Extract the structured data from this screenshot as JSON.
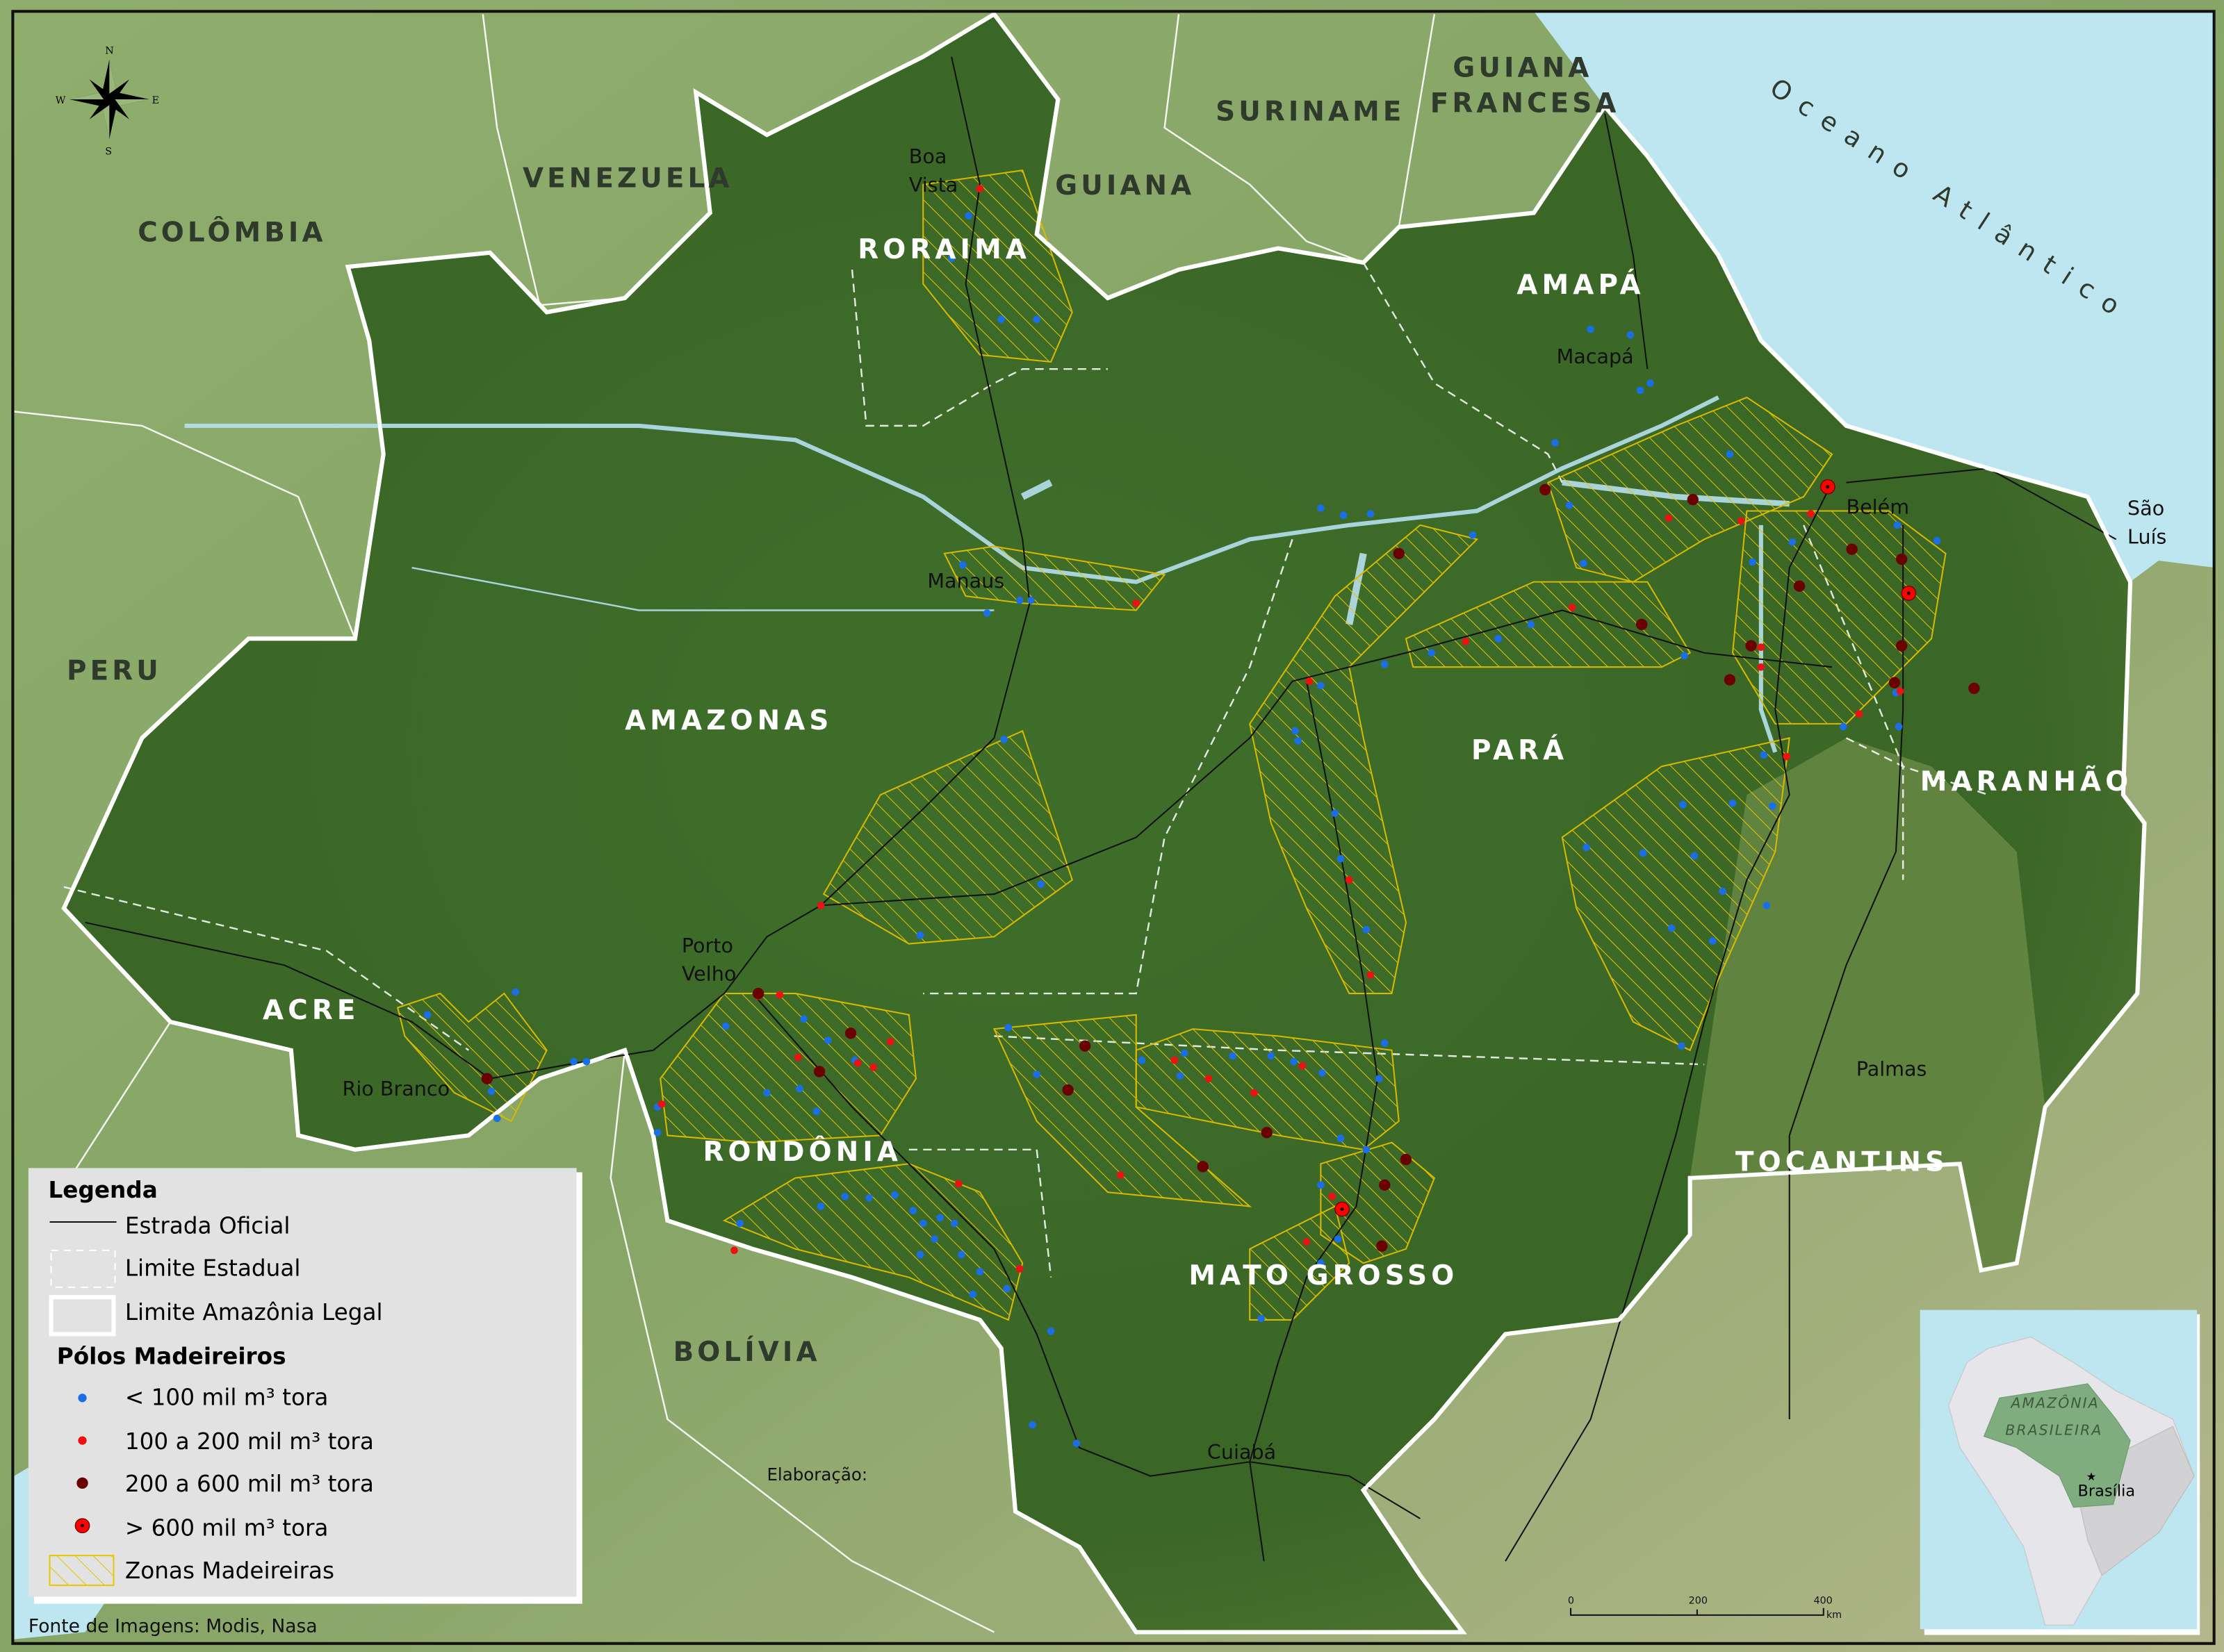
{
  "countries": {
    "colombia": "COLÔMBIA",
    "venezuela": "VENEZUELA",
    "guiana": "GUIANA",
    "suriname": "SURINAME",
    "guiana_francesa_1": "GUIANA",
    "guiana_francesa_2": "FRANCESA",
    "peru": "PERU",
    "bolivia": "BOLÍVIA",
    "ocean": "Oceano Atlântico"
  },
  "states": {
    "roraima": "RORAIMA",
    "amapa": "AMAPÁ",
    "amazonas": "AMAZONAS",
    "para": "PARÁ",
    "maranhao": "MARANHÃO",
    "acre": "ACRE",
    "rondonia": "RONDÔNIA",
    "mato_grosso": "MATO GROSSO",
    "tocantins": "TOCANTINS"
  },
  "cities": {
    "boa_vista_1": "Boa",
    "boa_vista_2": "Vista",
    "macapa": "Macapá",
    "manaus": "Manaus",
    "belem": "Belém",
    "sao_luis_1": "São",
    "sao_luis_2": "Luís",
    "porto_velho_1": "Porto",
    "porto_velho_2": "Velho",
    "rio_branco": "Rio Branco",
    "palmas": "Palmas",
    "cuiaba": "Cuiabá"
  },
  "compass": {
    "n": "N",
    "s": "S",
    "e": "E",
    "w": "W"
  },
  "legend": {
    "title": "Legenda",
    "road": "Estrada Oficial",
    "state_limit": "Limite Estadual",
    "legal_limit": "Limite Amazônia Legal",
    "poles_title": "Pólos Madeireiros",
    "cat1": "< 100 mil m³ tora",
    "cat2": "100 a 200 mil m³ tora",
    "cat3": "200 a 600 mil m³ tora",
    "cat4": "> 600 mil m³ tora",
    "zones": "Zonas Madeireiras"
  },
  "colors": {
    "cat1": "#1a6ee8",
    "cat2": "#ee1111",
    "cat3": "#6b0000",
    "cat4": "#ff0000",
    "zones": "#e8c800",
    "ocean": "#bde6f0",
    "amazon": "#3d6b2a"
  },
  "scale": {
    "t0": "0",
    "t1": "200",
    "t2": "400",
    "unit": "km"
  },
  "inset": {
    "region_1": "AMAZÔNIA",
    "region_2": "BRASILEIRA",
    "capital": "Brasília"
  },
  "credits": {
    "elaboracao": "Elaboração:",
    "source": "Fonte de Imagens: Modis, Nasa"
  }
}
